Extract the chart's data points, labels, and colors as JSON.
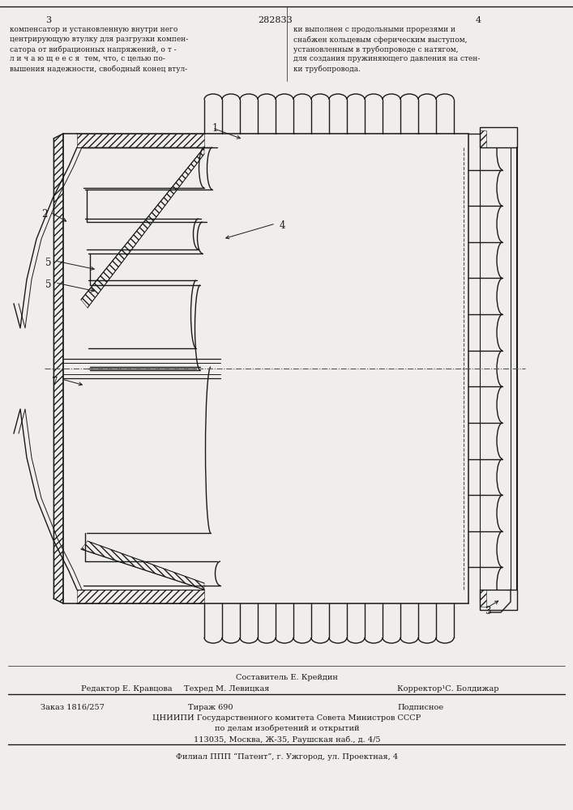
{
  "bg_color": "#f0eeea",
  "line_color": "#1a1a1a",
  "text_color": "#1a1a1a",
  "patent_number": "282833",
  "left_text": [
    "компенсатор и установленную внутри него",
    "центрирующую втулку для разгрузки компен-",
    "сатора от вибрационных напряжений, о т -",
    "л и ч а ю щ е е с я  тем, что, с целью по-",
    "вышения надежности, свободный конец втул-"
  ],
  "right_text": [
    "ки выполнен с продольными прорезями и",
    "снабжен кольцевым сферическим выступом,",
    "установленным в трубопроводе с натягом,",
    "для создания пружиняющего давления на стен-",
    "ки трубопровода."
  ],
  "footer": [
    "Составитель Е. Крейдин",
    "Редактор Е. Кравцова",
    "Техред М. Левицкая",
    "Корректор¹С. Болдижар",
    "Заказ 1816/257",
    "Тираж 690",
    "Подписное",
    "ЦНИИПИ Государственного комитета Совета Министров СССР",
    "по делам изобретений и открытий",
    "113035, Москва, Ж‑35, Раушская наб., д. 4/5",
    "Филиал ППП “Патент”, г. Ужгород, ул. Проектная, 4"
  ]
}
